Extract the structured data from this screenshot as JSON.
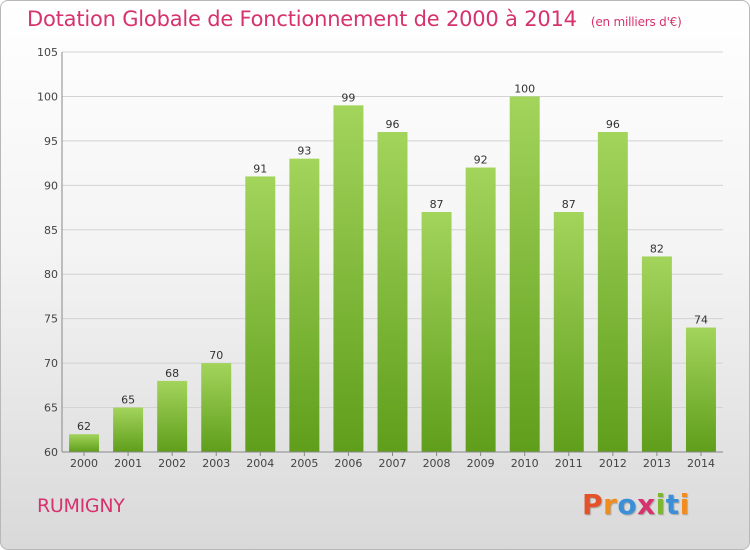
{
  "header": {
    "title": "Dotation Globale de Fonctionnement de 2000 à 2014",
    "unit": "(en milliers d'€)"
  },
  "footer": {
    "commune": "RUMIGNY",
    "logo_text": "Proxiti"
  },
  "colors": {
    "title": "#d6326e",
    "bar_top": "#a3d45c",
    "bar_bottom": "#5f9e1b",
    "grid": "#d3d3d3",
    "axis": "#888888",
    "logo_letters": [
      "#e4522a",
      "#f28c1c",
      "#3a8fd6",
      "#d6326e",
      "#7cb82f",
      "#3a8fd6",
      "#f28c1c"
    ]
  },
  "chart_data": {
    "type": "bar",
    "categories": [
      "2000",
      "2001",
      "2002",
      "2003",
      "2004",
      "2005",
      "2006",
      "2007",
      "2008",
      "2009",
      "2010",
      "2011",
      "2012",
      "2013",
      "2014"
    ],
    "values": [
      62,
      65,
      68,
      70,
      91,
      93,
      99,
      96,
      87,
      92,
      100,
      87,
      96,
      82,
      74
    ],
    "ylim": [
      60,
      105
    ],
    "yticks": [
      60,
      65,
      70,
      75,
      80,
      85,
      90,
      95,
      100,
      105
    ],
    "grid": true,
    "data_labels": true
  }
}
